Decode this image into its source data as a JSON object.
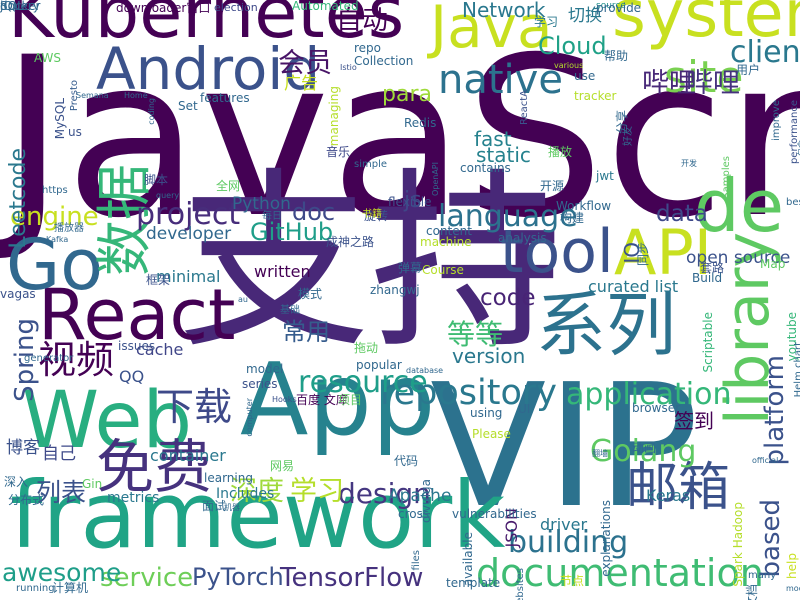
{
  "words": [
    {
      "text": "JavaScript",
      "color": "#440154",
      "vertical": false
    },
    {
      "text": "支持",
      "color": "#482878",
      "vertical": false
    },
    {
      "text": "VIP",
      "color": "#2c728e",
      "vertical": false
    },
    {
      "text": "framework",
      "color": "#20a486",
      "vertical": false
    },
    {
      "text": "Kubernetes",
      "color": "#440154",
      "vertical": false
    },
    {
      "text": "system",
      "color": "#c8e020",
      "vertical": false
    },
    {
      "text": "Java",
      "color": "#c8e020",
      "vertical": false
    },
    {
      "text": "Android",
      "color": "#3b528b",
      "vertical": false
    },
    {
      "text": "App",
      "color": "#26828e",
      "vertical": false
    },
    {
      "text": "Web",
      "color": "#28ae80",
      "vertical": false
    },
    {
      "text": "React",
      "color": "#440154",
      "vertical": false
    },
    {
      "text": "Go",
      "color": "#31688e",
      "vertical": false
    },
    {
      "text": "系列",
      "color": "#2c728e",
      "vertical": false
    },
    {
      "text": "API",
      "color": "#c8e020",
      "vertical": false
    },
    {
      "text": "de",
      "color": "#5ec962",
      "vertical": false
    },
    {
      "text": "tool",
      "color": "#3b528b",
      "vertical": false
    },
    {
      "text": "library",
      "color": "#5ec962",
      "vertical": true
    },
    {
      "text": "数据",
      "color": "#35b779",
      "vertical": true
    },
    {
      "text": "免费",
      "color": "#46327e",
      "vertical": false
    },
    {
      "text": "邮箱",
      "color": "#3b528b",
      "vertical": false
    },
    {
      "text": "documentation",
      "color": "#3fbc73",
      "vertical": false
    },
    {
      "text": "native",
      "color": "#2c728e",
      "vertical": false
    },
    {
      "text": "site",
      "color": "#7ad151",
      "vertical": false
    },
    {
      "text": "client",
      "color": "#2a788e",
      "vertical": false
    },
    {
      "text": "repository",
      "color": "#2a788e",
      "vertical": false
    },
    {
      "text": "application",
      "color": "#35b779",
      "vertical": false
    },
    {
      "text": "platform",
      "color": "#3b528b",
      "vertical": true
    },
    {
      "text": "视频",
      "color": "#440154",
      "vertical": false
    },
    {
      "text": "下载",
      "color": "#3e4989",
      "vertical": false
    },
    {
      "text": "resource",
      "color": "#1f9e89",
      "vertical": false
    },
    {
      "text": "Golang",
      "color": "#5ec962",
      "vertical": false
    },
    {
      "text": "design",
      "color": "#453781",
      "vertical": false
    },
    {
      "text": "building",
      "color": "#2c728e",
      "vertical": false
    },
    {
      "text": "based",
      "color": "#3b528b",
      "vertical": true
    },
    {
      "text": "TensorFlow",
      "color": "#46327e",
      "vertical": false
    },
    {
      "text": "PyTorch",
      "color": "#3b528b",
      "vertical": false
    },
    {
      "text": "service",
      "color": "#6ece58",
      "vertical": false
    },
    {
      "text": "awesome",
      "color": "#1f9e89",
      "vertical": false
    },
    {
      "text": "project",
      "color": "#472d7b",
      "vertical": false
    },
    {
      "text": "language",
      "color": "#2c728e",
      "vertical": false
    },
    {
      "text": "engine",
      "color": "#c8e020",
      "vertical": false
    },
    {
      "text": "GitHub",
      "color": "#1f9e89",
      "vertical": false
    },
    {
      "text": "等等",
      "color": "#3fbc73",
      "vertical": false
    },
    {
      "text": "常用",
      "color": "#365c8d",
      "vertical": false
    },
    {
      "text": "深度",
      "color": "#9fda3a",
      "vertical": false
    },
    {
      "text": "学习",
      "color": "#b5de2b",
      "vertical": false
    },
    {
      "text": "列表",
      "color": "#3b528b",
      "vertical": false
    },
    {
      "text": "哔哩",
      "color": "#482878",
      "vertical": false
    },
    {
      "text": "哔哩",
      "color": "#46327e",
      "vertical": false
    },
    {
      "text": "自动",
      "color": "#440154",
      "vertical": false
    },
    {
      "text": "会员",
      "color": "#481467",
      "vertical": false
    },
    {
      "text": "Spring",
      "color": "#3b528b",
      "vertical": true
    },
    {
      "text": "para",
      "color": "#9fda3a",
      "vertical": false
    },
    {
      "text": "Cloud",
      "color": "#1fa187",
      "vertical": false
    },
    {
      "text": "Network",
      "color": "#2a788e",
      "vertical": false
    },
    {
      "text": "version",
      "color": "#2a788e",
      "vertical": false
    },
    {
      "text": "code",
      "color": "#482475",
      "vertical": false
    },
    {
      "text": "data",
      "color": "#3e4989",
      "vertical": false
    },
    {
      "text": "doc",
      "color": "#3e4989",
      "vertical": false
    },
    {
      "text": "js",
      "color": "#404688",
      "vertical": false
    },
    {
      "text": "Python",
      "color": "#31688e",
      "vertical": false
    },
    {
      "text": "developer",
      "color": "#31688e",
      "vertical": false
    },
    {
      "text": "written",
      "color": "#440154",
      "vertical": false
    },
    {
      "text": "minimal",
      "color": "#2a788e",
      "vertical": false
    },
    {
      "text": "open source",
      "color": "#3b528b",
      "vertical": false
    },
    {
      "text": "curated list",
      "color": "#2a788e",
      "vertical": false
    },
    {
      "text": "Leetcode",
      "color": "#2a788e",
      "vertical": true
    },
    {
      "text": "fast",
      "color": "#26828e",
      "vertical": false
    },
    {
      "text": "static",
      "color": "#26828e",
      "vertical": false
    },
    {
      "text": "IO",
      "color": "#3b528b",
      "vertical": true
    },
    {
      "text": "container",
      "color": "#2a788e",
      "vertical": false
    },
    {
      "text": "QQ",
      "color": "#3b528b",
      "vertical": false
    },
    {
      "text": "cache",
      "color": "#404688",
      "vertical": false
    },
    {
      "text": "博客",
      "color": "#3b528b",
      "vertical": false
    },
    {
      "text": "自己",
      "color": "#3e4989",
      "vertical": false
    },
    {
      "text": "Apache",
      "color": "#2a788e",
      "vertical": false
    },
    {
      "text": "Includes",
      "color": "#2a788e",
      "vertical": false
    },
    {
      "text": "JSON",
      "color": "#481a6c",
      "vertical": true
    },
    {
      "text": "driver",
      "color": "#2a788e",
      "vertical": false
    },
    {
      "text": "metrics",
      "color": "#2a788e",
      "vertical": false
    },
    {
      "text": "Keras",
      "color": "#2a788e",
      "vertical": false
    },
    {
      "text": "签到",
      "color": "#440154",
      "vertical": false
    },
    {
      "text": "downloader窗口",
      "color": "#440154",
      "vertical": false
    },
    {
      "text": "election",
      "color": "#3e4989",
      "vertical": false
    },
    {
      "text": "Automated",
      "color": "#35b779",
      "vertical": false
    },
    {
      "text": "学习",
      "color": "#2a788e",
      "vertical": false
    },
    {
      "text": "切换",
      "color": "#2a788e",
      "vertical": false
    },
    {
      "text": "source",
      "color": "#21918c",
      "vertical": false
    },
    {
      "text": "provide",
      "color": "#31688e",
      "vertical": false
    },
    {
      "text": "repo",
      "color": "#31688e",
      "vertical": false
    },
    {
      "text": "Collection",
      "color": "#31688e",
      "vertical": false
    },
    {
      "text": "帮助",
      "color": "#31688e",
      "vertical": false
    },
    {
      "text": "AWS",
      "color": "#5ec962",
      "vertical": false
    },
    {
      "text": "Istio",
      "color": "#3b528b",
      "vertical": false
    },
    {
      "text": "various",
      "color": "#b5de2b",
      "vertical": false
    },
    {
      "text": "用户",
      "color": "#31688e",
      "vertical": false
    },
    {
      "text": "use",
      "color": "#31688e",
      "vertical": false
    },
    {
      "text": "广告",
      "color": "#c8e020",
      "vertical": false
    },
    {
      "text": "Presto",
      "color": "#365c8d",
      "vertical": true
    },
    {
      "text": "Semana",
      "color": "#31688e",
      "vertical": false
    },
    {
      "text": "Home",
      "color": "#31688e",
      "vertical": false
    },
    {
      "text": "Set",
      "color": "#31688e",
      "vertical": false
    },
    {
      "text": "features",
      "color": "#31688e",
      "vertical": false
    },
    {
      "text": "managing",
      "color": "#b5de2b",
      "vertical": true
    },
    {
      "text": "ReactA",
      "color": "#3b528b",
      "vertical": true
    },
    {
      "text": "tracker",
      "color": "#b5de2b",
      "vertical": false
    },
    {
      "text": "Redis",
      "color": "#31688e",
      "vertical": false
    },
    {
      "text": "MySQL",
      "color": "#3b528b",
      "vertical": true
    },
    {
      "text": "coding",
      "color": "#31688e",
      "vertical": true
    },
    {
      "text": "us",
      "color": "#3b528b",
      "vertical": false
    },
    {
      "text": "音乐",
      "color": "#3e4989",
      "vertical": false
    },
    {
      "text": "simple",
      "color": "#31688e",
      "vertical": false
    },
    {
      "text": "contains",
      "color": "#31688e",
      "vertical": false
    },
    {
      "text": "播放",
      "color": "#5ec962",
      "vertical": false
    },
    {
      "text": "分享",
      "color": "#31688e",
      "vertical": true
    },
    {
      "text": "好友",
      "color": "#31688e",
      "vertical": true
    },
    {
      "text": "开发",
      "color": "#31688e",
      "vertical": false
    },
    {
      "text": "improve",
      "color": "#31688e",
      "vertical": true
    },
    {
      "text": "performance",
      "color": "#3b528b",
      "vertical": true
    },
    {
      "text": "包含",
      "color": "#31688e",
      "vertical": true
    },
    {
      "text": "脚本",
      "color": "#3b528b",
      "vertical": false
    },
    {
      "text": "全网",
      "color": "#5ec962",
      "vertical": false
    },
    {
      "text": "https",
      "color": "#31688e",
      "vertical": false
    },
    {
      "text": "query",
      "color": "#31688e",
      "vertical": false
    },
    {
      "text": "开源",
      "color": "#31688e",
      "vertical": false
    },
    {
      "text": "jwt",
      "color": "#2a788e",
      "vertical": false
    },
    {
      "text": "flexible",
      "color": "#3b528b",
      "vertical": false
    },
    {
      "text": "Workflow",
      "color": "#31688e",
      "vertical": false
    },
    {
      "text": "构建",
      "color": "#31688e",
      "vertical": false
    },
    {
      "text": "Samples",
      "color": "#5ec962",
      "vertical": true
    },
    {
      "text": "best",
      "color": "#31688e",
      "vertical": false
    },
    {
      "text": "OpenAPI",
      "color": "#31688e",
      "vertical": true
    },
    {
      "text": "成神之路",
      "color": "#3b528b",
      "vertical": false
    },
    {
      "text": "旋转",
      "color": "#3b528b",
      "vertical": false
    },
    {
      "text": "书籍",
      "color": "#c8e020",
      "vertical": false
    },
    {
      "text": "每日",
      "color": "#31688e",
      "vertical": false
    },
    {
      "text": "content",
      "color": "#31688e",
      "vertical": false
    },
    {
      "text": "machine",
      "color": "#b5de2b",
      "vertical": false
    },
    {
      "text": "analysis",
      "color": "#31688e",
      "vertical": false
    },
    {
      "text": "播放器",
      "color": "#31688e",
      "vertical": false
    },
    {
      "text": "Kafka",
      "color": "#31688e",
      "vertical": false
    },
    {
      "text": "弹幕",
      "color": "#31688e",
      "vertical": false
    },
    {
      "text": "同步",
      "color": "#31688e",
      "vertical": true
    },
    {
      "text": "套路",
      "color": "#3b528b",
      "vertical": false
    },
    {
      "text": "Map",
      "color": "#5ec962",
      "vertical": false
    },
    {
      "text": "框架",
      "color": "#3b528b",
      "vertical": false
    },
    {
      "text": "vagas",
      "color": "#3b528b",
      "vertical": false
    },
    {
      "text": "模式",
      "color": "#31688e",
      "vertical": false
    },
    {
      "text": "Course",
      "color": "#b5de2b",
      "vertical": false
    },
    {
      "text": "zhangwj",
      "color": "#31688e",
      "vertical": false
    },
    {
      "text": "au",
      "color": "#31688e",
      "vertical": false
    },
    {
      "text": "Build",
      "color": "#31688e",
      "vertical": false
    },
    {
      "text": "Scriptable",
      "color": "#35b779",
      "vertical": true
    },
    {
      "text": "youtube",
      "color": "#35b779",
      "vertical": true
    },
    {
      "text": "基础",
      "color": "#31688e",
      "vertical": false
    },
    {
      "text": "拖动",
      "color": "#5ec962",
      "vertical": false
    },
    {
      "text": "Helm chart",
      "color": "#31688e",
      "vertical": true
    },
    {
      "text": "issues",
      "color": "#3b528b",
      "vertical": false
    },
    {
      "text": "generator",
      "color": "#31688e",
      "vertical": false
    },
    {
      "text": "popular",
      "color": "#31688e",
      "vertical": false
    },
    {
      "text": "database",
      "color": "#31688e",
      "vertical": false
    },
    {
      "text": "model",
      "color": "#31688e",
      "vertical": false
    },
    {
      "text": "series",
      "color": "#3b528b",
      "vertical": false
    },
    {
      "text": "百度 文库",
      "color": "#440154",
      "vertical": false
    },
    {
      "text": "Hooks",
      "color": "#3b528b",
      "vertical": false
    },
    {
      "text": "项目",
      "color": "#5ec962",
      "vertical": false
    },
    {
      "text": "computer",
      "color": "#31688e",
      "vertical": true
    },
    {
      "text": "using",
      "color": "#31688e",
      "vertical": false
    },
    {
      "text": "UI",
      "color": "#31688e",
      "vertical": false
    },
    {
      "text": "browser",
      "color": "#31688e",
      "vertical": false
    },
    {
      "text": "Please",
      "color": "#b5de2b",
      "vertical": false
    },
    {
      "text": "动画",
      "color": "#31688e",
      "vertical": false
    },
    {
      "text": "深入",
      "color": "#31688e",
      "vertical": false
    },
    {
      "text": "Gin",
      "color": "#5ec962",
      "vertical": false
    },
    {
      "text": "网易",
      "color": "#5ec962",
      "vertical": false
    },
    {
      "text": "代码",
      "color": "#31688e",
      "vertical": false
    },
    {
      "text": "divulga",
      "color": "#31688e",
      "vertical": true
    },
    {
      "text": "翻墙",
      "color": "#31688e",
      "vertical": false
    },
    {
      "text": "cross",
      "color": "#31688e",
      "vertical": false
    },
    {
      "text": "official",
      "color": "#31688e",
      "vertical": false
    },
    {
      "text": "分布式",
      "color": "#31688e",
      "vertical": false
    },
    {
      "text": "learning",
      "color": "#31688e",
      "vertical": false
    },
    {
      "text": "面试",
      "color": "#31688e",
      "vertical": false
    },
    {
      "text": "机器",
      "color": "#31688e",
      "vertical": false
    },
    {
      "text": "vulnerabilities",
      "color": "#31688e",
      "vertical": false
    },
    {
      "text": "节点",
      "color": "#c8e020",
      "vertical": false
    },
    {
      "text": "explanations",
      "color": "#31688e",
      "vertical": true
    },
    {
      "text": "Spark Hadoop",
      "color": "#b5de2b",
      "vertical": true
    },
    {
      "text": "help",
      "color": "#c8e020",
      "vertical": true
    },
    {
      "text": "modern",
      "color": "#31688e",
      "vertical": false
    },
    {
      "text": "available",
      "color": "#31688e",
      "vertical": true
    },
    {
      "text": "files",
      "color": "#31688e",
      "vertical": true
    },
    {
      "text": "websites",
      "color": "#31688e",
      "vertical": true
    },
    {
      "text": "many",
      "color": "#31688e",
      "vertical": false
    },
    {
      "text": "文档",
      "color": "#31688e",
      "vertical": true
    },
    {
      "text": "template",
      "color": "#31688e",
      "vertical": false
    },
    {
      "text": "running",
      "color": "#31688e",
      "vertical": false
    },
    {
      "text": "计算机",
      "color": "#31688e",
      "vertical": false
    },
    {
      "text": "SQL",
      "color": "#31688e",
      "vertical": false
    },
    {
      "text": "jQuery",
      "color": "#31688e",
      "vertical": false
    },
    {
      "text": "docker",
      "color": "#31688e",
      "vertical": false
    }
  ]
}
